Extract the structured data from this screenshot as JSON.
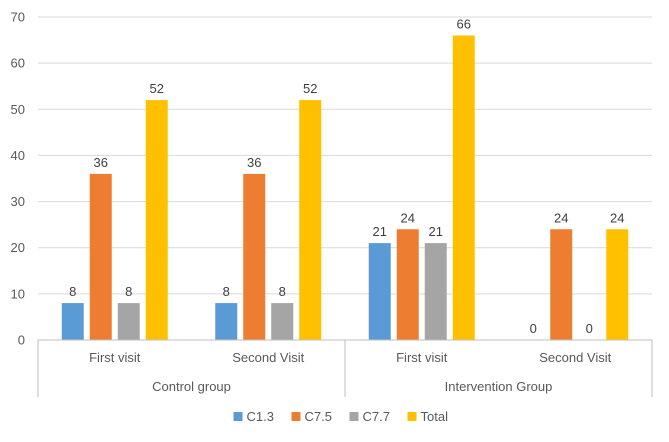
{
  "chart_data": {
    "type": "bar",
    "title": "",
    "xlabel": "",
    "ylabel": "",
    "ylim": [
      0,
      70
    ],
    "ytick_step": 10,
    "yticks": [
      "0",
      "10",
      "20",
      "30",
      "40",
      "50",
      "60",
      "70"
    ],
    "grid": true,
    "groups": [
      {
        "name": "Control group",
        "categories": [
          "First visit",
          "Second Visit"
        ]
      },
      {
        "name": "Intervention Group",
        "categories": [
          "First visit",
          "Second Visit"
        ]
      }
    ],
    "categories": [
      "First visit",
      "Second Visit",
      "First visit",
      "Second Visit"
    ],
    "series": [
      {
        "name": "C1.3",
        "color": "#5b9bd5",
        "values": [
          8,
          8,
          21,
          0
        ]
      },
      {
        "name": "C7.5",
        "color": "#ed7d31",
        "values": [
          36,
          36,
          24,
          24
        ]
      },
      {
        "name": "C7.7",
        "color": "#a5a5a5",
        "values": [
          8,
          8,
          21,
          0
        ]
      },
      {
        "name": "Total",
        "color": "#ffc000",
        "values": [
          52,
          52,
          66,
          24
        ]
      }
    ],
    "legend_position": "bottom"
  }
}
